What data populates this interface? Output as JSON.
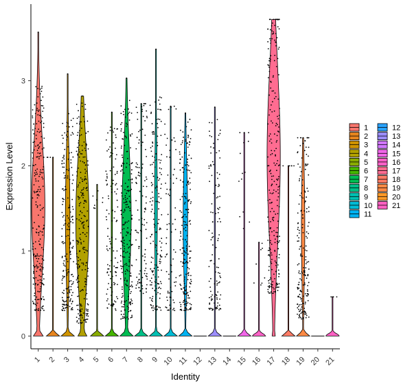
{
  "chart_data": {
    "type": "violin",
    "xlabel": "Identity",
    "ylabel": "Expression Level",
    "categories": [
      "1",
      "2",
      "3",
      "4",
      "5",
      "6",
      "7",
      "8",
      "9",
      "10",
      "11",
      "12",
      "13",
      "14",
      "15",
      "16",
      "17",
      "18",
      "19",
      "20",
      "21"
    ],
    "yticks": [
      0,
      1,
      2,
      3
    ],
    "ylim": [
      -0.15,
      3.9
    ],
    "grid": false,
    "legend_position": "right",
    "colors": [
      "#F8766D",
      "#E7851E",
      "#D09400",
      "#B2A100",
      "#89AC00",
      "#45B500",
      "#00BC51",
      "#00C087",
      "#00C0B2",
      "#00BCD6",
      "#00B3F2",
      "#29A3FF",
      "#9C8DFF",
      "#D277FF",
      "#F166E8",
      "#FF61C7",
      "#FF6C91",
      "#FF7B65",
      "#FF8A45",
      "#FF9A28",
      "#FF61C3"
    ],
    "series": [
      {
        "category": "1",
        "max": 3.57,
        "pos_fraction": 0.95,
        "y_low": 0.3,
        "y_high": 2.75
      },
      {
        "category": "2",
        "max": 2.1,
        "pos_fraction": 0.01,
        "y_low": 2.1,
        "y_high": 2.1
      },
      {
        "category": "3",
        "max": 3.08,
        "pos_fraction": 0.8,
        "y_low": 0.3,
        "y_high": 2.5
      },
      {
        "category": "4",
        "max": 2.82,
        "pos_fraction": 0.96,
        "y_low": 0.15,
        "y_high": 2.6
      },
      {
        "category": "5",
        "max": 1.78,
        "pos_fraction": 0.03,
        "y_low": 1.5,
        "y_high": 1.78
      },
      {
        "category": "6",
        "max": 2.63,
        "pos_fraction": 0.5,
        "y_low": 0.3,
        "y_high": 2.4
      },
      {
        "category": "7",
        "max": 3.03,
        "pos_fraction": 0.9,
        "y_low": 0.2,
        "y_high": 2.6
      },
      {
        "category": "8",
        "max": 2.73,
        "pos_fraction": 0.45,
        "y_low": 0.5,
        "y_high": 2.7
      },
      {
        "category": "9",
        "max": 3.37,
        "pos_fraction": 0.7,
        "y_low": 0.3,
        "y_high": 2.7
      },
      {
        "category": "10",
        "max": 2.7,
        "pos_fraction": 0.3,
        "y_low": 0.3,
        "y_high": 2.6
      },
      {
        "category": "11",
        "max": 2.62,
        "pos_fraction": 0.8,
        "y_low": 0.3,
        "y_high": 2.4
      },
      {
        "category": "12",
        "max": 0.0,
        "pos_fraction": 0.0,
        "y_low": 0,
        "y_high": 0
      },
      {
        "category": "13",
        "max": 2.69,
        "pos_fraction": 0.45,
        "y_low": 0.3,
        "y_high": 2.4
      },
      {
        "category": "14",
        "max": 0.0,
        "pos_fraction": 0.0,
        "y_low": 0,
        "y_high": 0
      },
      {
        "category": "15",
        "max": 2.39,
        "pos_fraction": 0.05,
        "y_low": 1.0,
        "y_high": 2.39
      },
      {
        "category": "16",
        "max": 1.1,
        "pos_fraction": 0.03,
        "y_low": 0.6,
        "y_high": 1.1
      },
      {
        "category": "17",
        "max": 3.72,
        "pos_fraction": 0.99,
        "y_low": 0.5,
        "y_high": 3.72
      },
      {
        "category": "18",
        "max": 2.0,
        "pos_fraction": 0.02,
        "y_low": 2.0,
        "y_high": 2.0
      },
      {
        "category": "19",
        "max": 2.33,
        "pos_fraction": 0.75,
        "y_low": 0.2,
        "y_high": 2.33
      },
      {
        "category": "20",
        "max": 0.0,
        "pos_fraction": 0.0,
        "y_low": 0,
        "y_high": 0
      },
      {
        "category": "21",
        "max": 0.46,
        "pos_fraction": 0.01,
        "y_low": 0.46,
        "y_high": 0.46
      }
    ]
  }
}
